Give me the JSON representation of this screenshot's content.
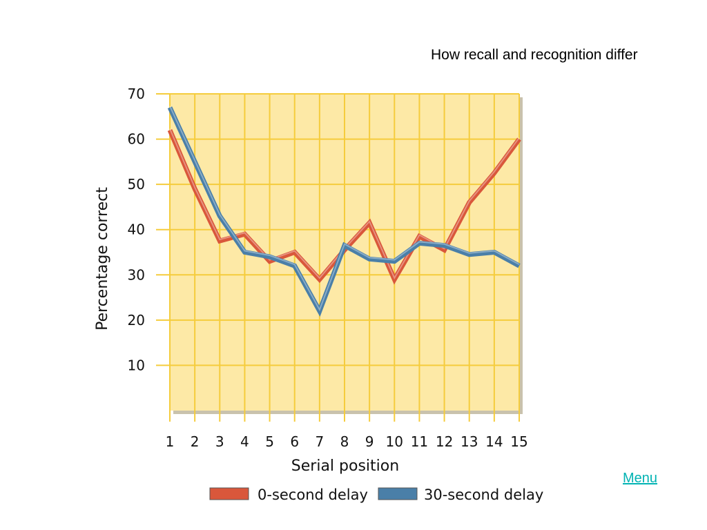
{
  "slide": {
    "title": "How recall and recognition differ",
    "menu_link": "Menu"
  },
  "chart_data": {
    "type": "line",
    "title": "",
    "xlabel": "Serial position",
    "ylabel": "Percentage correct",
    "x": [
      1,
      2,
      3,
      4,
      5,
      6,
      7,
      8,
      9,
      10,
      11,
      12,
      13,
      14,
      15
    ],
    "xlim": [
      1,
      15
    ],
    "ylim": [
      0,
      70
    ],
    "yticks": [
      10,
      20,
      30,
      40,
      50,
      60,
      70
    ],
    "grid": true,
    "legend_position": "bottom",
    "plot_background": "#fde9a6",
    "grid_color": "#f5cc3c",
    "series": [
      {
        "name": "0-second delay",
        "color": "#d9573b",
        "values": [
          62,
          49,
          37.5,
          39,
          33,
          35,
          29,
          35.5,
          41.5,
          29,
          38.5,
          35.5,
          46,
          52.5,
          60
        ]
      },
      {
        "name": "30-second delay",
        "color": "#4a7fa8",
        "values": [
          67,
          55,
          43,
          35,
          34,
          32,
          22,
          36.5,
          33.5,
          33,
          37,
          36.5,
          34.5,
          35,
          32
        ]
      }
    ]
  }
}
